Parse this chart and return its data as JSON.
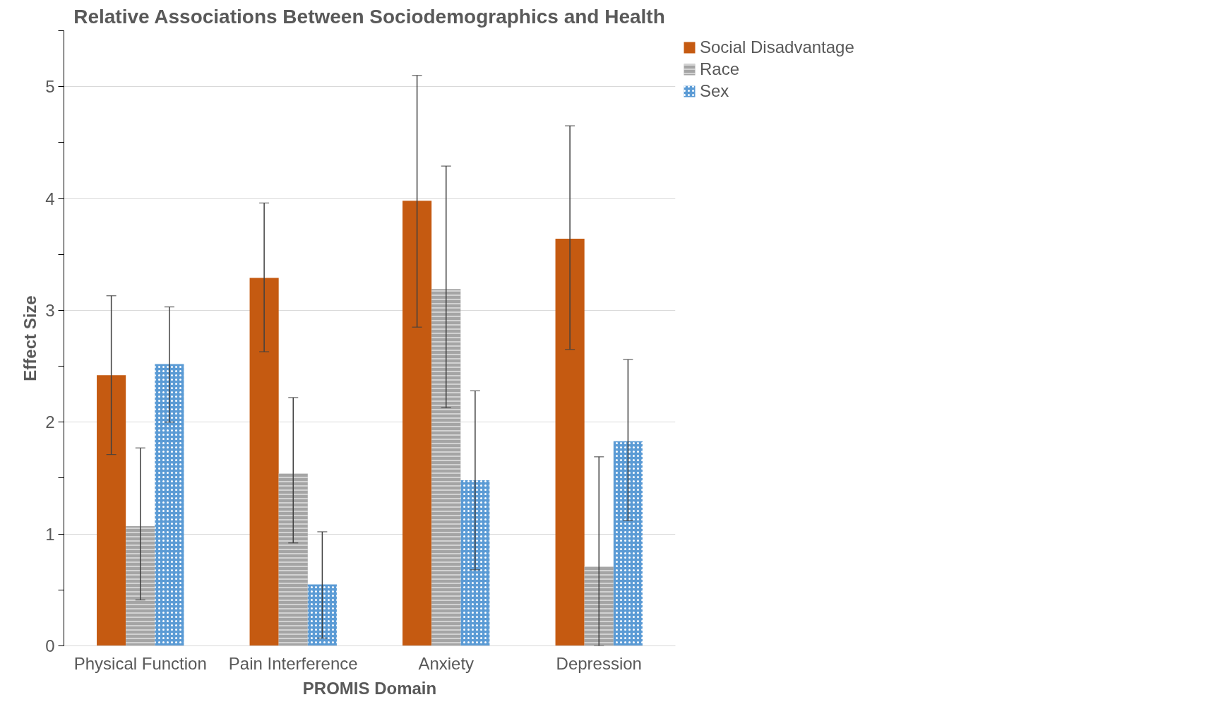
{
  "chart_data": {
    "type": "bar",
    "title": "Relative Associations Between Sociodemographics and Health",
    "xlabel": "PROMIS Domain",
    "ylabel": "Effect Size",
    "categories": [
      "Physical Function",
      "Pain Interference",
      "Anxiety",
      "Depression"
    ],
    "series": [
      {
        "name": "Social Disadvantage",
        "color": "#c55a11",
        "values": [
          2.42,
          3.29,
          3.98,
          3.64
        ],
        "errors": [
          [
            1.71,
            3.13
          ],
          [
            2.63,
            3.96
          ],
          [
            2.85,
            5.1
          ],
          [
            2.65,
            4.65
          ]
        ]
      },
      {
        "name": "Race",
        "color": "#a5a5a5",
        "values": [
          1.07,
          1.54,
          3.19,
          0.71
        ],
        "errors": [
          [
            0.41,
            1.77
          ],
          [
            0.92,
            2.22
          ],
          [
            2.13,
            4.29
          ],
          [
            0,
            1.69
          ]
        ]
      },
      {
        "name": "Sex",
        "color": "#5b9bd5",
        "values": [
          2.52,
          0.55,
          1.48,
          1.83
        ],
        "errors": [
          [
            2.0,
            3.03
          ],
          [
            0.07,
            1.02
          ],
          [
            0.68,
            2.28
          ],
          [
            1.12,
            2.56
          ]
        ]
      }
    ],
    "ylim": [
      0,
      5.5
    ],
    "yticks": [
      0,
      1,
      2,
      3,
      4,
      5
    ],
    "grid": "y",
    "legend": "right"
  }
}
